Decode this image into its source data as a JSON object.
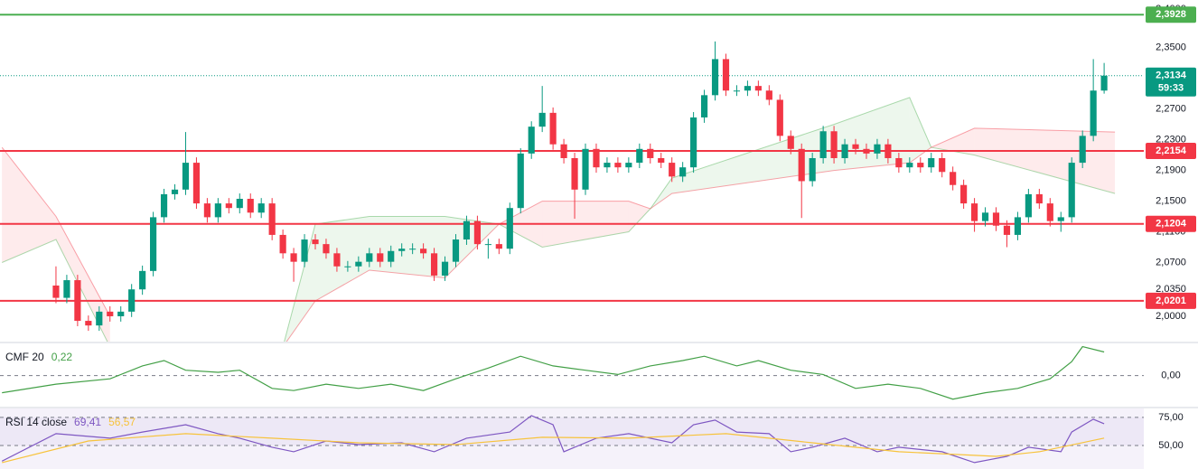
{
  "chart_data": [
    {
      "type": "candlestick",
      "xlim": [
        -5.18,
        100.67
      ],
      "ylim": [
        1.967,
        2.412
      ],
      "yticks": [
        {
          "value": 2.4,
          "label": "2,4000"
        },
        {
          "value": 2.35,
          "label": "2,3500"
        },
        {
          "value": 2.27,
          "label": "2,2700"
        },
        {
          "value": 2.23,
          "label": "2,2300"
        },
        {
          "value": 2.19,
          "label": "2,1900"
        },
        {
          "value": 2.15,
          "label": "2,1500"
        },
        {
          "value": 2.11,
          "label": "2,1100"
        },
        {
          "value": 2.07,
          "label": "2,0700"
        },
        {
          "value": 2.035,
          "label": "2,0350"
        },
        {
          "value": 2.0,
          "label": "2,0000"
        }
      ],
      "up_color": "#089981",
      "down_color": "#f23645",
      "open": [
        2.04,
        2.024,
        2.047,
        1.994,
        1.988,
        2.006,
        2.0,
        2.006,
        2.035,
        2.059,
        2.129,
        2.159,
        2.165,
        2.2,
        2.147,
        2.129,
        2.147,
        2.141,
        2.153,
        2.135,
        2.147,
        2.106,
        2.082,
        2.071,
        2.1,
        2.094,
        2.082,
        2.065,
        2.065,
        2.071,
        2.082,
        2.071,
        2.085,
        2.088,
        2.088,
        2.082,
        2.053,
        2.071,
        2.1,
        2.124,
        2.094,
        2.094,
        2.088,
        2.141,
        2.212,
        2.247,
        2.265,
        2.224,
        2.206,
        2.165,
        2.218,
        2.194,
        2.2,
        2.194,
        2.2,
        2.218,
        2.206,
        2.2,
        2.182,
        2.194,
        2.259,
        2.288,
        2.335,
        2.294,
        2.294,
        2.3,
        2.294,
        2.282,
        2.235,
        2.218,
        2.176,
        2.206,
        2.241,
        2.206,
        2.224,
        2.218,
        2.212,
        2.224,
        2.206,
        2.194,
        2.2,
        2.194,
        2.206,
        2.188,
        2.171,
        2.147,
        2.124,
        2.135,
        2.118,
        2.106,
        2.129,
        2.159,
        2.147,
        2.124,
        2.129,
        2.2,
        2.235,
        2.294
      ],
      "high": [
        2.065,
        2.054,
        2.054,
        2.001,
        2.013,
        2.013,
        2.013,
        2.042,
        2.066,
        2.136,
        2.166,
        2.172,
        2.24,
        2.207,
        2.154,
        2.154,
        2.154,
        2.16,
        2.16,
        2.154,
        2.154,
        2.113,
        2.089,
        2.107,
        2.107,
        2.101,
        2.089,
        2.072,
        2.078,
        2.089,
        2.089,
        2.092,
        2.095,
        2.095,
        2.095,
        2.089,
        2.078,
        2.107,
        2.131,
        2.131,
        2.101,
        2.101,
        2.148,
        2.219,
        2.254,
        2.3,
        2.272,
        2.231,
        2.213,
        2.225,
        2.225,
        2.207,
        2.207,
        2.207,
        2.225,
        2.225,
        2.213,
        2.207,
        2.201,
        2.266,
        2.295,
        2.358,
        2.342,
        2.301,
        2.307,
        2.307,
        2.301,
        2.289,
        2.242,
        2.225,
        2.213,
        2.248,
        2.248,
        2.231,
        2.231,
        2.225,
        2.231,
        2.231,
        2.213,
        2.207,
        2.207,
        2.213,
        2.213,
        2.195,
        2.178,
        2.154,
        2.142,
        2.142,
        2.125,
        2.136,
        2.166,
        2.166,
        2.154,
        2.136,
        2.207,
        2.242,
        2.335,
        2.33
      ],
      "low": [
        2.017,
        2.017,
        1.987,
        1.981,
        1.981,
        1.993,
        1.993,
        1.999,
        2.028,
        2.052,
        2.122,
        2.152,
        2.158,
        2.14,
        2.122,
        2.122,
        2.134,
        2.134,
        2.128,
        2.128,
        2.099,
        2.075,
        2.045,
        2.064,
        2.087,
        2.075,
        2.058,
        2.058,
        2.058,
        2.064,
        2.064,
        2.064,
        2.078,
        2.081,
        2.075,
        2.046,
        2.046,
        2.064,
        2.093,
        2.087,
        2.075,
        2.081,
        2.081,
        2.134,
        2.205,
        2.24,
        2.217,
        2.199,
        2.127,
        2.158,
        2.187,
        2.187,
        2.187,
        2.187,
        2.193,
        2.199,
        2.193,
        2.175,
        2.175,
        2.187,
        2.252,
        2.281,
        2.287,
        2.287,
        2.287,
        2.287,
        2.275,
        2.228,
        2.211,
        2.128,
        2.169,
        2.199,
        2.199,
        2.199,
        2.211,
        2.205,
        2.205,
        2.199,
        2.187,
        2.187,
        2.187,
        2.187,
        2.181,
        2.164,
        2.14,
        2.11,
        2.117,
        2.111,
        2.09,
        2.099,
        2.122,
        2.14,
        2.117,
        2.11,
        2.122,
        2.193,
        2.228,
        2.29
      ],
      "close": [
        2.024,
        2.047,
        1.994,
        1.988,
        2.006,
        2.0,
        2.006,
        2.035,
        2.059,
        2.129,
        2.159,
        2.165,
        2.2,
        2.147,
        2.129,
        2.147,
        2.141,
        2.153,
        2.135,
        2.147,
        2.106,
        2.082,
        2.071,
        2.1,
        2.094,
        2.082,
        2.065,
        2.065,
        2.071,
        2.082,
        2.071,
        2.085,
        2.088,
        2.088,
        2.082,
        2.053,
        2.071,
        2.1,
        2.124,
        2.094,
        2.094,
        2.088,
        2.141,
        2.212,
        2.247,
        2.265,
        2.224,
        2.206,
        2.165,
        2.218,
        2.194,
        2.2,
        2.194,
        2.2,
        2.218,
        2.206,
        2.2,
        2.182,
        2.194,
        2.259,
        2.288,
        2.335,
        2.294,
        2.294,
        2.3,
        2.294,
        2.282,
        2.235,
        2.218,
        2.176,
        2.206,
        2.241,
        2.206,
        2.224,
        2.218,
        2.212,
        2.224,
        2.206,
        2.194,
        2.2,
        2.194,
        2.206,
        2.188,
        2.171,
        2.147,
        2.124,
        2.135,
        2.118,
        2.106,
        2.129,
        2.159,
        2.147,
        2.124,
        2.129,
        2.2,
        2.235,
        2.294,
        2.3134
      ],
      "cloud": {
        "x": [
          -5,
          0,
          5,
          13,
          21,
          24,
          29,
          36,
          41,
          45,
          53,
          55,
          57,
          72,
          79,
          81,
          85,
          98
        ],
        "span_a": [
          2.07,
          2.1,
          1.96,
          null,
          1.96,
          2.12,
          2.13,
          2.13,
          2.12,
          2.09,
          2.11,
          2.14,
          2.18,
          2.25,
          2.285,
          2.22,
          2.21,
          2.16
        ],
        "span_b": [
          2.22,
          2.13,
          2.0,
          null,
          1.96,
          2.02,
          2.06,
          2.05,
          2.12,
          2.15,
          2.15,
          2.14,
          2.16,
          2.19,
          2.2,
          2.22,
          2.245,
          2.24
        ],
        "up_color": "#4caf50",
        "down_color": "#f23645"
      },
      "levels": [
        {
          "value": 2.3928,
          "label": "2,3928",
          "color": "#4caf50"
        },
        {
          "value": 2.2154,
          "label": "2,2154",
          "color": "#f23645"
        },
        {
          "value": 2.1204,
          "label": "2,1204",
          "color": "#f23645"
        },
        {
          "value": 2.0201,
          "label": "2,0201",
          "color": "#f23645"
        }
      ],
      "last_price": {
        "value": 2.3134,
        "label": "2,3134",
        "countdown": "59:33",
        "color": "#089981"
      }
    },
    {
      "type": "line",
      "title": "CMF 20",
      "xlim": [
        -5.18,
        100.67
      ],
      "ylim": [
        -0.29,
        0.3
      ],
      "yticks": [
        {
          "value": 0,
          "label": "0,00"
        }
      ],
      "series": [
        {
          "color": "#43a047",
          "last_label": "0,22",
          "x": [
            -5,
            0,
            5,
            8,
            10,
            12,
            15,
            17,
            20,
            22,
            25,
            28,
            31,
            34,
            37,
            40,
            43,
            46,
            49,
            52,
            55,
            58,
            60,
            63,
            65,
            68,
            71,
            74,
            77,
            80,
            83,
            86,
            89,
            92,
            94,
            95,
            97
          ],
          "values": [
            -0.16,
            -0.08,
            -0.03,
            0.09,
            0.14,
            0.05,
            0.03,
            0.05,
            -0.12,
            -0.14,
            -0.08,
            -0.12,
            -0.08,
            -0.14,
            -0.03,
            0.07,
            0.18,
            0.09,
            0.05,
            0.01,
            0.09,
            0.14,
            0.18,
            0.09,
            0.14,
            0.05,
            0.01,
            -0.12,
            -0.08,
            -0.12,
            -0.22,
            -0.16,
            -0.12,
            -0.03,
            0.13,
            0.27,
            0.22
          ]
        }
      ]
    },
    {
      "type": "line",
      "title": "RSI 14 close",
      "xlim": [
        -5.18,
        100.67
      ],
      "ylim": [
        29,
        83
      ],
      "yticks": [
        {
          "value": 75,
          "label": "75,00"
        },
        {
          "value": 50,
          "label": "50,00"
        }
      ],
      "band_color": "#7e57c2",
      "series": [
        {
          "color": "#7e57c2",
          "last_label": "69,41",
          "x": [
            -5,
            0,
            5,
            8,
            12,
            15,
            17,
            20,
            22,
            25,
            28,
            32,
            35,
            38,
            42,
            44,
            46,
            47,
            50,
            53,
            57,
            59,
            61,
            63,
            66,
            68,
            70,
            73,
            76,
            78,
            82,
            85,
            88,
            90,
            93,
            94,
            96,
            97
          ],
          "values": [
            36,
            60.5,
            56.5,
            62,
            68.5,
            60.5,
            56.5,
            48.4,
            44.4,
            54,
            50.8,
            52.4,
            44.4,
            56.5,
            62,
            76.6,
            68.5,
            44.4,
            56.5,
            60.5,
            52.4,
            68.5,
            72.6,
            62,
            60.5,
            44.4,
            48.4,
            56.5,
            44.4,
            48.4,
            44.4,
            34.7,
            40.3,
            48.4,
            44.4,
            62,
            73.4,
            69.41
          ]
        },
        {
          "color": "#f7c33c",
          "last_label": "56,57",
          "x": [
            -5,
            3,
            12,
            20,
            28,
            37,
            45,
            53,
            62,
            70,
            78,
            87,
            91,
            97
          ],
          "values": [
            34.7,
            54,
            60.5,
            56.5,
            52.4,
            50.8,
            57.3,
            56.5,
            60.5,
            52.4,
            44.4,
            40.3,
            44.4,
            56.57
          ]
        }
      ]
    }
  ]
}
